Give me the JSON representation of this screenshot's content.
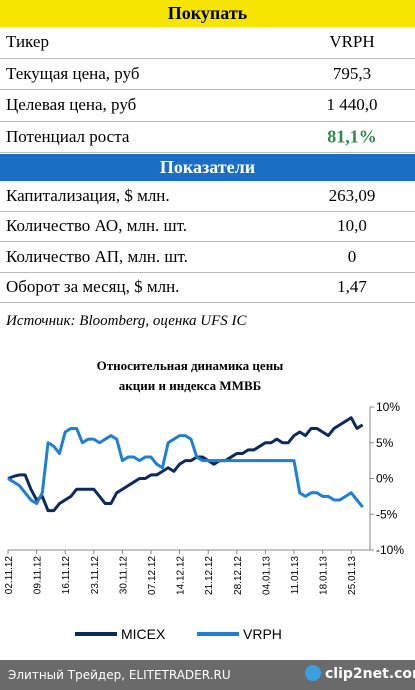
{
  "sections": [
    {
      "title": "Покупать",
      "rows": [
        [
          "Тикер",
          "VRPH"
        ],
        [
          "Текущая цена, руб",
          "795,3"
        ],
        [
          "Целевая цена, руб",
          "1 440,0"
        ],
        [
          "Потенциал роста",
          "81,1%"
        ]
      ]
    },
    {
      "title": "Показатели",
      "rows": [
        [
          "Капитализация, $ млн.",
          "263,09"
        ],
        [
          "Количество АО, млн. шт.",
          "10,0"
        ],
        [
          "Количество АП, млн. шт.",
          "0"
        ],
        [
          "Оборот за месяц, $ млн.",
          "1,47"
        ]
      ]
    }
  ],
  "source": "Источник: Bloomberg, оценка UFS IC",
  "chart_data": {
    "type": "line",
    "title": [
      "Относительная динамика цены",
      "акции и индекса ММВБ"
    ],
    "categories": [
      "02.11.12",
      null,
      null,
      null,
      null,
      "09.11.12",
      null,
      null,
      null,
      null,
      "16.11.12",
      null,
      null,
      null,
      null,
      "23.11.12",
      null,
      null,
      null,
      null,
      "30.11.12",
      null,
      null,
      null,
      null,
      "07.12.12",
      null,
      null,
      null,
      null,
      "14.12.12",
      null,
      null,
      null,
      null,
      "21.12.12",
      null,
      null,
      null,
      null,
      "28.12.12",
      null,
      null,
      null,
      null,
      "04.01.13",
      null,
      null,
      null,
      null,
      "11.01.13",
      null,
      null,
      null,
      null,
      "18.01.13",
      null,
      null,
      null,
      null,
      "25.01.13",
      null,
      null
    ],
    "series": [
      {
        "name": "MICEX",
        "color": "#0d2a5c",
        "values": [
          0,
          0.3,
          0.5,
          0.5,
          -1.5,
          -3,
          -2.5,
          -4.5,
          -4.5,
          -3.5,
          -3,
          -2.5,
          -1.5,
          -1.5,
          -1.5,
          -1.5,
          -2.5,
          -3.5,
          -3.5,
          -2,
          -1.5,
          -1,
          -0.5,
          0,
          0,
          0.5,
          0.5,
          1,
          1.5,
          1,
          2,
          2.5,
          2.5,
          3,
          3,
          2.5,
          2,
          2.5,
          2.5,
          3,
          3.5,
          3.5,
          4,
          4,
          4.5,
          5,
          5,
          5.5,
          5,
          5,
          6,
          6.5,
          6,
          7,
          7,
          6.5,
          6,
          7,
          7.5,
          8,
          8.5,
          7,
          7.5
        ]
      },
      {
        "name": "VRPH",
        "color": "#1f7fd0",
        "values": [
          0,
          -0.5,
          -1,
          -2,
          -3,
          -3.5,
          -2,
          5,
          4.5,
          3.5,
          6.5,
          7,
          7,
          5,
          5.5,
          5.5,
          5,
          5.5,
          6,
          5.5,
          2.5,
          3,
          3,
          2.5,
          3,
          3,
          2,
          1.5,
          5,
          5.5,
          6,
          6,
          5.5,
          3,
          2.5,
          2.5,
          2.5,
          2.5,
          2.5,
          2.5,
          2.5,
          2.5,
          2.5,
          2.5,
          2.5,
          2.5,
          2.5,
          2.5,
          2.5,
          2.5,
          2.5,
          -2,
          -2.5,
          -2,
          -2,
          -2.5,
          -2.5,
          -3,
          -3,
          -2.5,
          -2,
          -3,
          -4
        ]
      }
    ],
    "ylim": [
      -10,
      10
    ],
    "yticks": [
      {
        "value": 10,
        "label": "10%"
      },
      {
        "value": 5,
        "label": "5%"
      },
      {
        "value": 0,
        "label": "0%"
      },
      {
        "value": -5,
        "label": "-5%"
      },
      {
        "value": -10,
        "label": "-10%"
      }
    ]
  },
  "footer": {
    "text": "Элитный Трейдер, ELITETRADER.RU",
    "logo": "clip2net.com"
  }
}
